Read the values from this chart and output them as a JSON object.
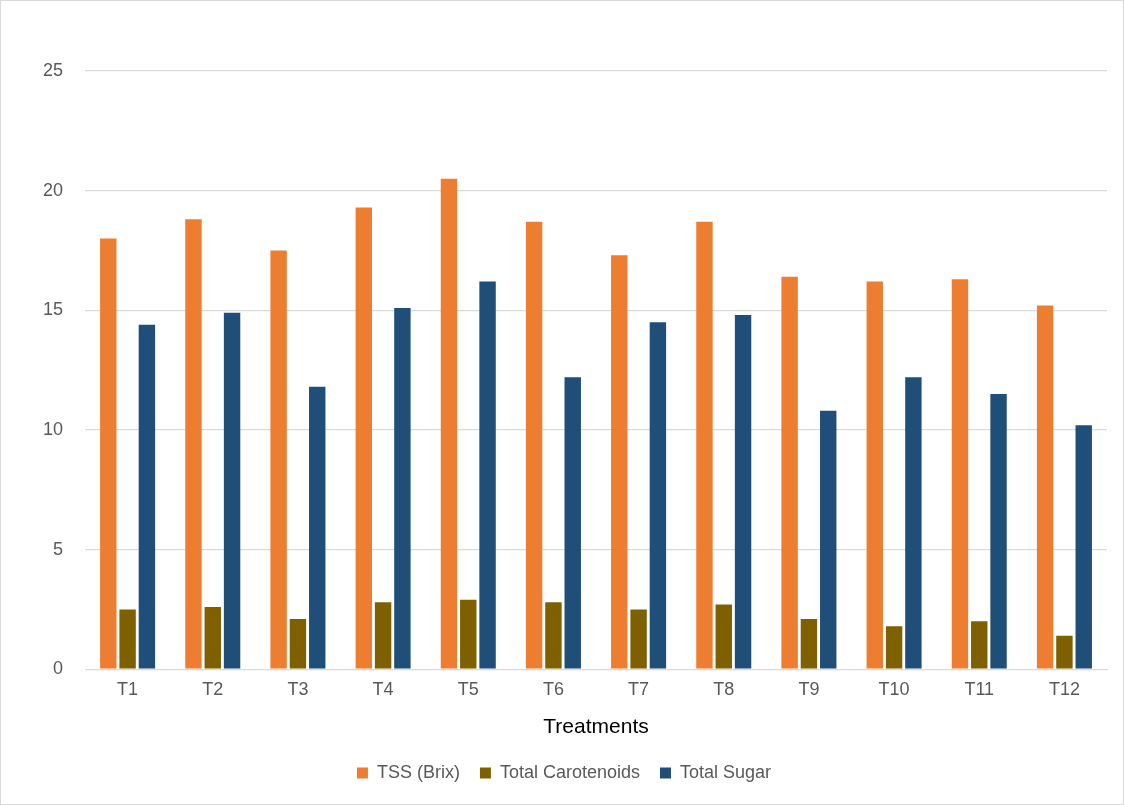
{
  "chart_data": {
    "type": "bar",
    "xlabel": "Treatments",
    "categories": [
      "T1",
      "T2",
      "T3",
      "T4",
      "T5",
      "T6",
      "T7",
      "T8",
      "T9",
      "T10",
      "T11",
      "T12"
    ],
    "series": [
      {
        "name": "TSS (Brix)",
        "color": "#ed7d31",
        "values": [
          18.0,
          18.8,
          17.5,
          19.3,
          20.5,
          18.7,
          17.3,
          18.7,
          16.4,
          16.2,
          16.3,
          15.2
        ]
      },
      {
        "name": "Total Carotenoids",
        "color": "#7f6000",
        "values": [
          2.5,
          2.6,
          2.1,
          2.8,
          2.9,
          2.8,
          2.5,
          2.7,
          2.1,
          1.8,
          2.0,
          1.4
        ]
      },
      {
        "name": "Total Sugar",
        "color": "#1f4e79",
        "values": [
          14.4,
          14.9,
          11.8,
          15.1,
          16.2,
          12.2,
          14.5,
          14.8,
          10.8,
          12.2,
          11.5,
          10.2
        ]
      }
    ],
    "ylim": [
      0,
      25
    ],
    "yticks": [
      0,
      5,
      10,
      15,
      20,
      25
    ],
    "grid": "y",
    "legend": "bottom"
  }
}
